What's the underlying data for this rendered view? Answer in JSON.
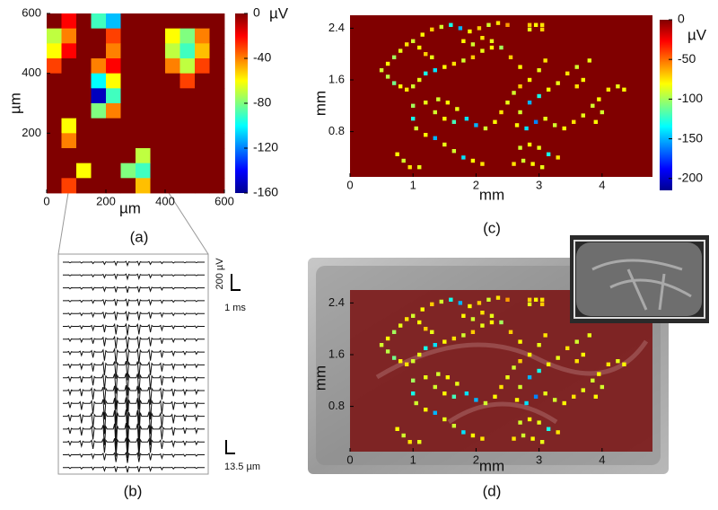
{
  "chart_data": [
    {
      "type": "heatmap",
      "label": "(a)",
      "xlabel": "µm",
      "ylabel": "µm",
      "xlim": [
        0,
        600
      ],
      "ylim": [
        0,
        600
      ],
      "xticks": [
        0,
        200,
        400,
        600
      ],
      "yticks": [
        200,
        400,
        600
      ],
      "values": [
        [
          0,
          -20,
          0,
          -90,
          -110,
          0,
          0,
          0,
          0,
          0,
          0,
          0
        ],
        [
          -70,
          -40,
          0,
          0,
          -30,
          0,
          0,
          0,
          -60,
          -80,
          -40,
          0
        ],
        [
          -60,
          -20,
          0,
          0,
          -40,
          0,
          0,
          0,
          -70,
          -90,
          -50,
          0
        ],
        [
          -30,
          0,
          0,
          -40,
          -20,
          0,
          0,
          0,
          -40,
          -70,
          -30,
          0
        ],
        [
          0,
          0,
          0,
          -100,
          -60,
          0,
          0,
          0,
          0,
          -30,
          0,
          0
        ],
        [
          0,
          0,
          0,
          -150,
          -90,
          0,
          0,
          0,
          0,
          0,
          0,
          0
        ],
        [
          0,
          0,
          0,
          -80,
          -40,
          0,
          0,
          0,
          0,
          0,
          0,
          0
        ],
        [
          0,
          -60,
          0,
          0,
          0,
          0,
          0,
          0,
          0,
          0,
          0,
          0
        ],
        [
          0,
          -40,
          0,
          0,
          0,
          0,
          0,
          0,
          0,
          0,
          0,
          0
        ],
        [
          0,
          0,
          0,
          0,
          0,
          0,
          -70,
          0,
          0,
          0,
          0,
          0
        ],
        [
          0,
          0,
          -60,
          0,
          0,
          -80,
          -90,
          0,
          0,
          0,
          0,
          0
        ],
        [
          0,
          -30,
          0,
          0,
          0,
          0,
          -50,
          0,
          0,
          0,
          0,
          0
        ]
      ],
      "colorbar": {
        "label": "µV",
        "lim": [
          -160,
          0
        ],
        "ticks": [
          0,
          -40,
          -80,
          -120,
          -160
        ]
      }
    },
    {
      "type": "traces",
      "label": "(b)",
      "peaks": [
        40,
        50,
        60,
        70,
        90,
        110,
        130,
        160,
        190,
        220,
        260,
        300,
        330,
        300,
        200,
        100,
        60
      ],
      "amp_scale": {
        "value": 200,
        "label": "200 µV"
      },
      "time_scale": "1 ms",
      "space_scale": "13.5 µm"
    },
    {
      "type": "scatter",
      "label": "(c)",
      "xlabel": "mm",
      "ylabel": "mm",
      "xlim": [
        0,
        4.8
      ],
      "ylim": [
        0.1,
        2.6
      ],
      "xticks": [
        0,
        1,
        2,
        3,
        4
      ],
      "yticks": [
        0.8,
        1.6,
        2.4
      ],
      "x": [
        1.15,
        1.3,
        1.45,
        1.6,
        1.75,
        1.9,
        2.05,
        2.2,
        2.35,
        2.5,
        2.85,
        2.95,
        3.05,
        2.85,
        3.05,
        0.5,
        0.6,
        0.7,
        0.8,
        0.9,
        1.0,
        1.1,
        1.2,
        1.3,
        0.6,
        0.7,
        0.8,
        0.9,
        1.0,
        1.1,
        1.2,
        1.35,
        1.5,
        1.65,
        1.8,
        1.95,
        2.1,
        2.25,
        1.8,
        1.95,
        2.1,
        2.25,
        2.4,
        2.55,
        2.7,
        1.4,
        1.55,
        1.7,
        1.85,
        2.0,
        2.15,
        2.3,
        2.4,
        2.5,
        2.6,
        2.7,
        2.85,
        3.0,
        3.1,
        1.0,
        1.0,
        1.05,
        1.2,
        1.35,
        1.5,
        1.65,
        1.8,
        1.95,
        2.1,
        1.2,
        1.35,
        1.5,
        1.65,
        0.75,
        0.85,
        0.95,
        1.1,
        2.7,
        2.85,
        3.0,
        3.15,
        3.3,
        3.45,
        3.6,
        2.65,
        2.8,
        2.95,
        3.1,
        3.25,
        3.4,
        3.55,
        3.7,
        3.85,
        3.95,
        4.1,
        4.25,
        4.35,
        2.7,
        2.85,
        3.0,
        3.15,
        3.3,
        2.75,
        2.9,
        3.05,
        2.6,
        3.7,
        3.8,
        3.6,
        4.0,
        3.9
      ],
      "y": [
        2.3,
        2.38,
        2.42,
        2.45,
        2.4,
        2.35,
        2.4,
        2.45,
        2.48,
        2.45,
        2.45,
        2.45,
        2.45,
        2.38,
        2.38,
        1.75,
        1.85,
        1.95,
        2.05,
        2.15,
        2.2,
        2.1,
        2.0,
        1.95,
        1.65,
        1.55,
        1.5,
        1.45,
        1.5,
        1.6,
        1.7,
        1.75,
        1.8,
        1.85,
        1.9,
        1.95,
        2.05,
        2.1,
        2.2,
        2.15,
        2.25,
        2.2,
        2.1,
        1.95,
        1.8,
        1.3,
        1.25,
        1.15,
        1.0,
        0.9,
        0.85,
        0.95,
        1.1,
        1.25,
        1.4,
        1.5,
        1.6,
        1.75,
        1.9,
        1.2,
        1.0,
        0.85,
        0.75,
        0.7,
        0.6,
        0.5,
        0.4,
        0.35,
        0.3,
        1.25,
        1.1,
        1.0,
        0.95,
        0.45,
        0.35,
        0.25,
        0.25,
        1.1,
        1.25,
        1.35,
        1.45,
        1.55,
        1.7,
        1.8,
        0.9,
        0.85,
        0.95,
        1.0,
        0.9,
        0.85,
        0.95,
        1.05,
        1.2,
        1.3,
        1.45,
        1.5,
        1.45,
        0.55,
        0.6,
        0.55,
        0.45,
        0.4,
        0.35,
        0.3,
        0.25,
        0.3,
        1.6,
        1.9,
        1.5,
        1.1,
        0.95
      ],
      "values": [
        -80,
        -70,
        -90,
        -130,
        -150,
        -80,
        -70,
        -90,
        -75,
        -60,
        -70,
        -80,
        -75,
        -85,
        -70,
        -90,
        -80,
        -100,
        -85,
        -75,
        -90,
        -80,
        -70,
        -85,
        -95,
        -110,
        -80,
        -75,
        -90,
        -85,
        -130,
        -140,
        -80,
        -75,
        -90,
        -70,
        -85,
        -80,
        -80,
        -90,
        -75,
        -85,
        -100,
        -70,
        -80,
        -90,
        -80,
        -85,
        -140,
        -150,
        -90,
        -80,
        -75,
        -85,
        -90,
        -70,
        -80,
        -85,
        -75,
        -100,
        -130,
        -90,
        -80,
        -150,
        -85,
        -90,
        -140,
        -80,
        -75,
        -85,
        -90,
        -80,
        -120,
        -80,
        -90,
        -75,
        -85,
        -90,
        -150,
        -130,
        -80,
        -85,
        -75,
        -90,
        -80,
        -140,
        -160,
        -85,
        -90,
        -80,
        -75,
        -85,
        -90,
        -80,
        -75,
        -85,
        -80,
        -90,
        -80,
        -85,
        -130,
        -75,
        -90,
        -80,
        -85,
        -75,
        -80,
        -85,
        -75,
        -90,
        -80
      ],
      "colorbar": {
        "label": "µV",
        "lim": [
          -215,
          0
        ],
        "ticks": [
          0,
          -50,
          -100,
          -150,
          -200
        ]
      }
    },
    {
      "type": "overlay",
      "label": "(d)",
      "xlabel": "mm",
      "ylabel": "mm"
    }
  ]
}
